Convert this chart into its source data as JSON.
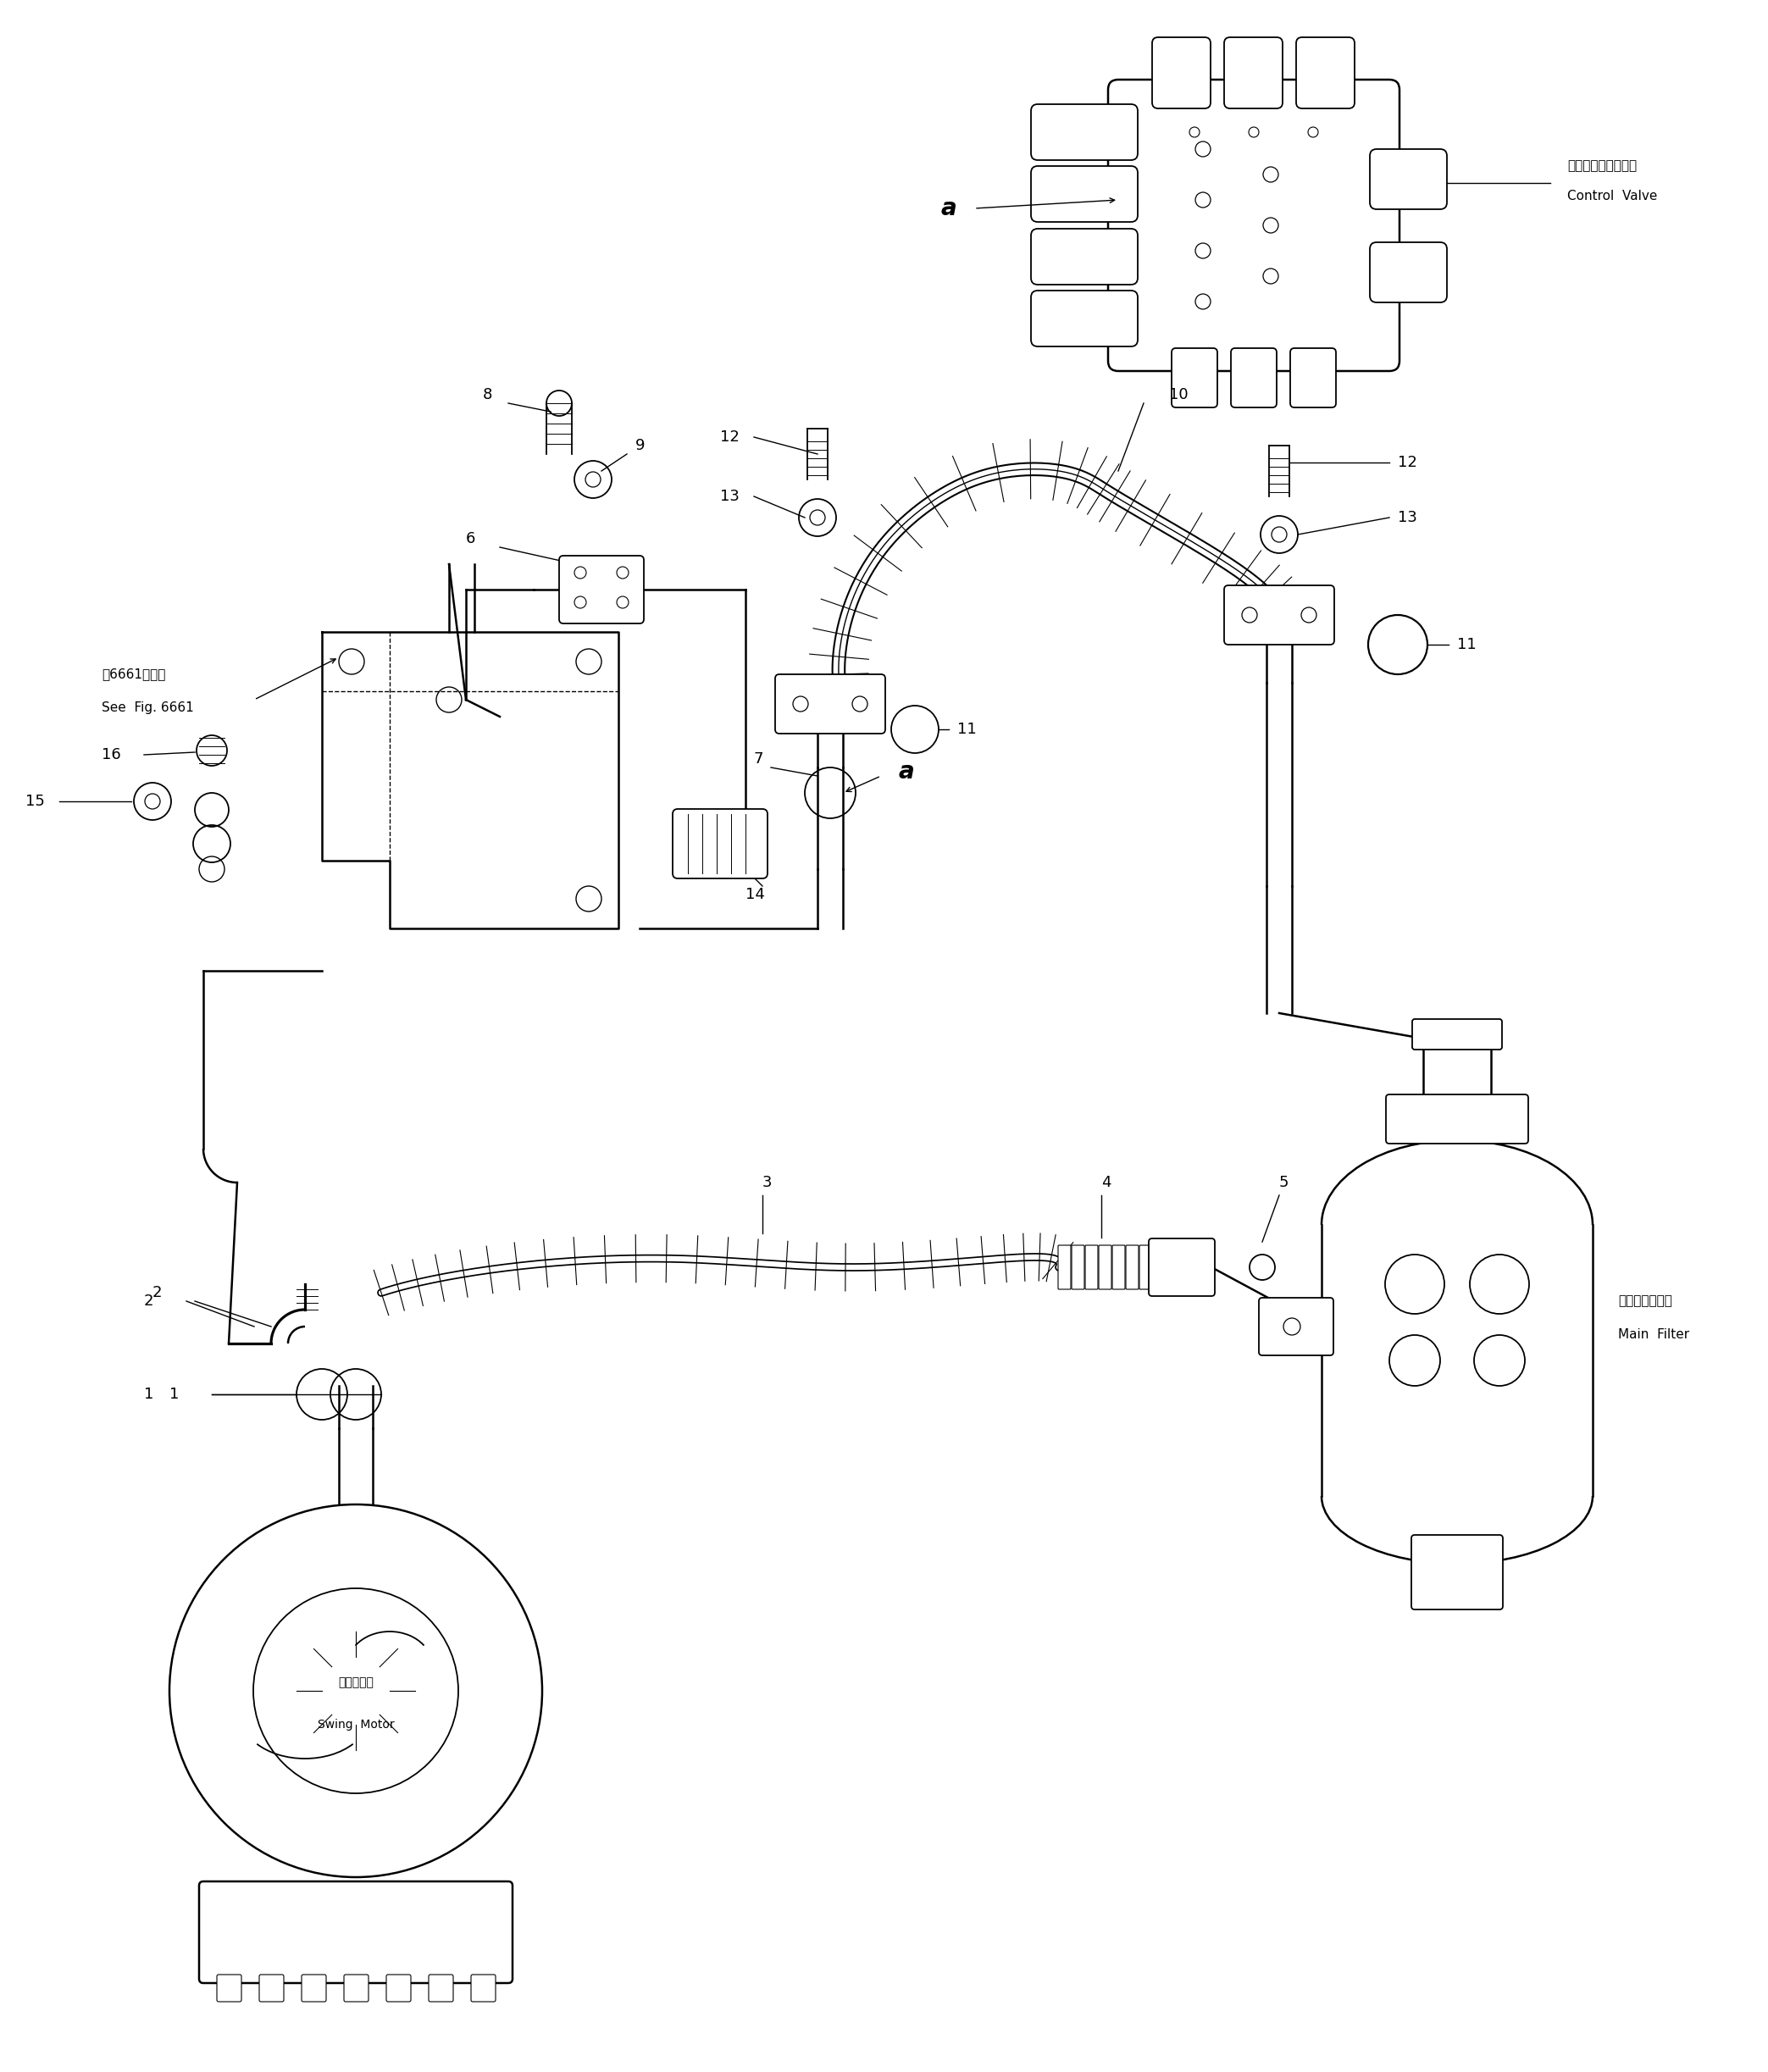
{
  "background_color": "#ffffff",
  "fig_width": 20.87,
  "fig_height": 24.46,
  "labels": {
    "control_valve_jp": "コントロールバルブ",
    "control_valve_en": "Control  Valve",
    "swing_motor_jp": "旋回モータ",
    "swing_motor_en": "Swing  Motor",
    "main_filter_jp": "メインフィルタ",
    "main_filter_en": "Main  Filter",
    "see_fig_jp": "第6661図参照",
    "see_fig_en": "See  Fig. 6661"
  }
}
